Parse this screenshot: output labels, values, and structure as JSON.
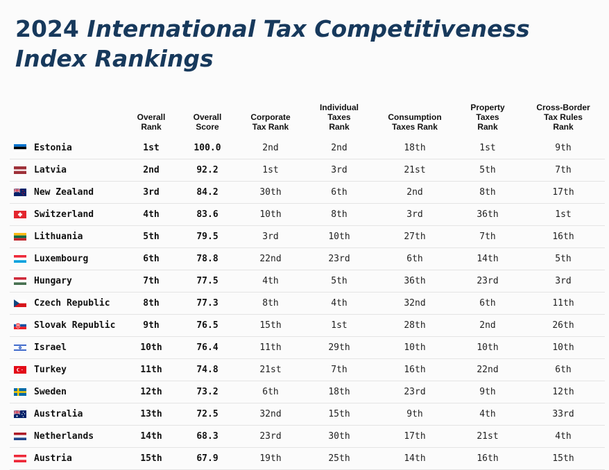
{
  "title": {
    "part1": "2024 ",
    "part2": "International Tax Competitiveness Index Rankings"
  },
  "headers": [
    "",
    "Overall\nRank",
    "Overall\nScore",
    "Corporate\nTax Rank",
    "Individual\nTaxes\nRank",
    "Consumption\nTaxes Rank",
    "Property\nTaxes\nRank",
    "Cross-Border\nTax Rules\nRank"
  ],
  "chart_data": {
    "type": "table",
    "columns": [
      "Overall Rank",
      "Overall Score",
      "Corporate Tax Rank",
      "Individual Taxes Rank",
      "Consumption Taxes Rank",
      "Property Taxes Rank",
      "Cross-Border Tax Rules Rank"
    ],
    "rows": [
      {
        "country": "Estonia",
        "flag": "estonia-flag-icon",
        "values": [
          "1st",
          "100.0",
          "2nd",
          "2nd",
          "18th",
          "1st",
          "9th"
        ]
      },
      {
        "country": "Latvia",
        "flag": "latvia-flag-icon",
        "values": [
          "2nd",
          "92.2",
          "1st",
          "3rd",
          "21st",
          "5th",
          "7th"
        ]
      },
      {
        "country": "New Zealand",
        "flag": "new-zealand-flag-icon",
        "values": [
          "3rd",
          "84.2",
          "30th",
          "6th",
          "2nd",
          "8th",
          "17th"
        ]
      },
      {
        "country": "Switzerland",
        "flag": "switzerland-flag-icon",
        "values": [
          "4th",
          "83.6",
          "10th",
          "8th",
          "3rd",
          "36th",
          "1st"
        ]
      },
      {
        "country": "Lithuania",
        "flag": "lithuania-flag-icon",
        "values": [
          "5th",
          "79.5",
          "3rd",
          "10th",
          "27th",
          "7th",
          "16th"
        ]
      },
      {
        "country": "Luxembourg",
        "flag": "luxembourg-flag-icon",
        "values": [
          "6th",
          "78.8",
          "22nd",
          "23rd",
          "6th",
          "14th",
          "5th"
        ]
      },
      {
        "country": "Hungary",
        "flag": "hungary-flag-icon",
        "values": [
          "7th",
          "77.5",
          "4th",
          "5th",
          "36th",
          "23rd",
          "3rd"
        ]
      },
      {
        "country": "Czech Republic",
        "flag": "czech-republic-flag-icon",
        "values": [
          "8th",
          "77.3",
          "8th",
          "4th",
          "32nd",
          "6th",
          "11th"
        ]
      },
      {
        "country": "Slovak Republic",
        "flag": "slovak-republic-flag-icon",
        "values": [
          "9th",
          "76.5",
          "15th",
          "1st",
          "28th",
          "2nd",
          "26th"
        ]
      },
      {
        "country": "Israel",
        "flag": "israel-flag-icon",
        "values": [
          "10th",
          "76.4",
          "11th",
          "29th",
          "10th",
          "10th",
          "10th"
        ]
      },
      {
        "country": "Turkey",
        "flag": "turkey-flag-icon",
        "values": [
          "11th",
          "74.8",
          "21st",
          "7th",
          "16th",
          "22nd",
          "6th"
        ]
      },
      {
        "country": "Sweden",
        "flag": "sweden-flag-icon",
        "values": [
          "12th",
          "73.2",
          "6th",
          "18th",
          "23rd",
          "9th",
          "12th"
        ]
      },
      {
        "country": "Australia",
        "flag": "australia-flag-icon",
        "values": [
          "13th",
          "72.5",
          "32nd",
          "15th",
          "9th",
          "4th",
          "33rd"
        ]
      },
      {
        "country": "Netherlands",
        "flag": "netherlands-flag-icon",
        "values": [
          "14th",
          "68.3",
          "23rd",
          "30th",
          "17th",
          "21st",
          "4th"
        ]
      },
      {
        "country": "Austria",
        "flag": "austria-flag-icon",
        "values": [
          "15th",
          "67.9",
          "19th",
          "25th",
          "14th",
          "16th",
          "15th"
        ]
      }
    ]
  }
}
